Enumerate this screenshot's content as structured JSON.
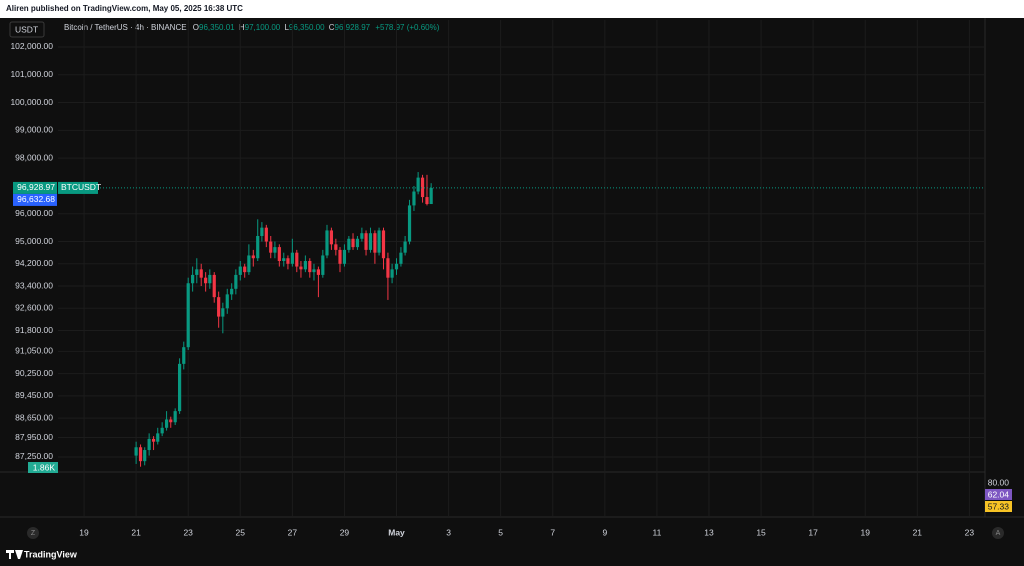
{
  "chart_data": {
    "type": "candlestick",
    "published": "Aliren published on TradingView.com, May 05, 2025 16:38 UTC",
    "currency": "USDT",
    "symbol": "Bitcoin / TetherUS · 4h · BINANCE",
    "ohlc_legend": [
      {
        "prefix": "O",
        "text": "96,350.01"
      },
      {
        "prefix": "H",
        "text": "97,100.00"
      },
      {
        "prefix": "L",
        "text": "96,350.00"
      },
      {
        "prefix": "C",
        "text": "96,928.97"
      }
    ],
    "change": "+578.97 (+0.60%)",
    "ticker": "BTCUSDT",
    "logo": "TradingView",
    "buttons": [
      "Z",
      "A"
    ],
    "up_color": "#089981",
    "down_color": "#f23645",
    "last_price": {
      "value": 96928.97,
      "label": "96,928.97"
    },
    "secondary_price": {
      "value": 96632.68,
      "label": "96,632.68"
    },
    "volume_label": "1.86K",
    "indicator_labels": [
      "80.00",
      "62.04",
      "57.33"
    ],
    "ylim": [
      86710,
      102970
    ],
    "yticks": [
      {
        "value": 102000,
        "label": "102,000.00"
      },
      {
        "value": 101000,
        "label": "101,000.00"
      },
      {
        "value": 100000,
        "label": "100,000.00"
      },
      {
        "value": 99000,
        "label": "99,000.00"
      },
      {
        "value": 98000,
        "label": "98,000.00"
      },
      {
        "value": 96000,
        "label": "96,000.00"
      },
      {
        "value": 95000,
        "label": "95,000.00"
      },
      {
        "value": 94200,
        "label": "94,200.00"
      },
      {
        "value": 93400,
        "label": "93,400.00"
      },
      {
        "value": 92600,
        "label": "92,600.00"
      },
      {
        "value": 91800,
        "label": "91,800.00"
      },
      {
        "value": 91050,
        "label": "91,050.00"
      },
      {
        "value": 90250,
        "label": "90,250.00"
      },
      {
        "value": 89450,
        "label": "89,450.00"
      },
      {
        "value": 88650,
        "label": "88,650.00"
      },
      {
        "value": 87950,
        "label": "87,950.00"
      },
      {
        "value": 87250,
        "label": "87,250.00"
      }
    ],
    "xlim": [
      18,
      53.6
    ],
    "xticks": [
      19,
      21,
      23,
      25,
      27,
      29,
      {
        "value": 31,
        "label": "May"
      },
      {
        "value": 33,
        "label": "3"
      },
      {
        "value": 35,
        "label": "5"
      },
      {
        "value": 37,
        "label": "7"
      },
      {
        "value": 39,
        "label": "9"
      },
      {
        "value": 41,
        "label": "11"
      },
      {
        "value": 43,
        "label": "13"
      },
      {
        "value": 45,
        "label": "15"
      },
      {
        "value": 47,
        "label": "17"
      },
      {
        "value": 49,
        "label": "19"
      },
      {
        "value": 51,
        "label": "21"
      },
      {
        "value": 53,
        "label": "23"
      }
    ],
    "x": [
      21,
      21.17,
      21.33,
      21.5,
      21.67,
      21.83,
      22,
      22.17,
      22.33,
      22.5,
      22.67,
      22.83,
      23,
      23.17,
      23.33,
      23.5,
      23.67,
      23.83,
      24,
      24.17,
      24.33,
      24.5,
      24.67,
      24.83,
      25,
      25.17,
      25.33,
      25.5,
      25.67,
      25.83,
      26,
      26.17,
      26.33,
      26.5,
      26.67,
      26.83,
      27,
      27.17,
      27.33,
      27.5,
      27.67,
      27.83,
      28,
      28.17,
      28.33,
      28.5,
      28.67,
      28.83,
      29,
      29.17,
      29.33,
      29.5,
      29.67,
      29.83,
      30,
      30.17,
      30.33,
      30.5,
      30.67,
      30.83,
      31,
      31.17,
      31.33,
      31.5,
      31.67,
      31.83,
      32,
      32.17,
      32.33
    ],
    "open": [
      87300,
      87600,
      87100,
      87500,
      87900,
      87800,
      88100,
      88300,
      88600,
      88500,
      88900,
      90600,
      91200,
      93500,
      93800,
      94000,
      93700,
      93500,
      93800,
      93000,
      92300,
      92600,
      93100,
      93300,
      93800,
      94100,
      93900,
      94500,
      94400,
      95200,
      95500,
      95000,
      94600,
      94800,
      94300,
      94400,
      94200,
      94600,
      94100,
      94000,
      94300,
      93900,
      94000,
      93800,
      94500,
      95400,
      94900,
      94700,
      94200,
      94700,
      95100,
      94800,
      95100,
      95300,
      94700,
      95300,
      94600,
      95400,
      94400,
      93700,
      94000,
      94200,
      94600,
      95000,
      96300,
      96800,
      97300,
      96600,
      96350.01
    ],
    "high": [
      87800,
      87700,
      87600,
      88100,
      88000,
      88300,
      88500,
      88900,
      88700,
      89000,
      90800,
      91400,
      93700,
      94100,
      94400,
      94200,
      93900,
      94000,
      93900,
      93200,
      92800,
      93300,
      93500,
      94000,
      94300,
      94200,
      94900,
      94700,
      95800,
      95700,
      95600,
      95200,
      95000,
      94900,
      94600,
      94500,
      95100,
      94700,
      94300,
      94500,
      94400,
      94200,
      94100,
      94700,
      95600,
      95500,
      95100,
      94800,
      94900,
      95200,
      95300,
      95200,
      95500,
      95400,
      95500,
      95400,
      95500,
      95500,
      94600,
      94200,
      94400,
      94800,
      95200,
      96500,
      97000,
      97500,
      97400,
      97400,
      97100
    ],
    "low": [
      87000,
      86900,
      86950,
      87300,
      87500,
      87700,
      88000,
      88200,
      88300,
      88400,
      88800,
      90400,
      91100,
      93200,
      93500,
      93400,
      93200,
      93300,
      92800,
      91900,
      91700,
      92400,
      92900,
      93100,
      93600,
      93700,
      93800,
      94100,
      94300,
      95000,
      94800,
      94400,
      94400,
      94100,
      94100,
      94000,
      94100,
      93900,
      93700,
      93900,
      93700,
      93600,
      93000,
      93700,
      94400,
      94700,
      94500,
      93900,
      94100,
      94600,
      94700,
      94700,
      95000,
      94500,
      94600,
      94200,
      94500,
      94000,
      92900,
      93500,
      93800,
      94100,
      94500,
      94900,
      96100,
      96700,
      96400,
      96300,
      96350
    ],
    "close": [
      87600,
      87100,
      87500,
      87900,
      87800,
      88100,
      88300,
      88600,
      88500,
      88900,
      90600,
      91200,
      93500,
      93800,
      94000,
      93700,
      93500,
      93800,
      93000,
      92300,
      92600,
      93100,
      93300,
      93800,
      94100,
      93900,
      94500,
      94400,
      95200,
      95500,
      95000,
      94600,
      94800,
      94300,
      94400,
      94200,
      94600,
      94100,
      94000,
      94300,
      93900,
      94000,
      93800,
      94500,
      95400,
      94900,
      94700,
      94200,
      94700,
      95100,
      94800,
      95100,
      95300,
      94700,
      95300,
      94600,
      95400,
      94400,
      93700,
      94000,
      94200,
      94600,
      95000,
      96300,
      96800,
      97300,
      96600,
      96350,
      96928.97
    ]
  }
}
